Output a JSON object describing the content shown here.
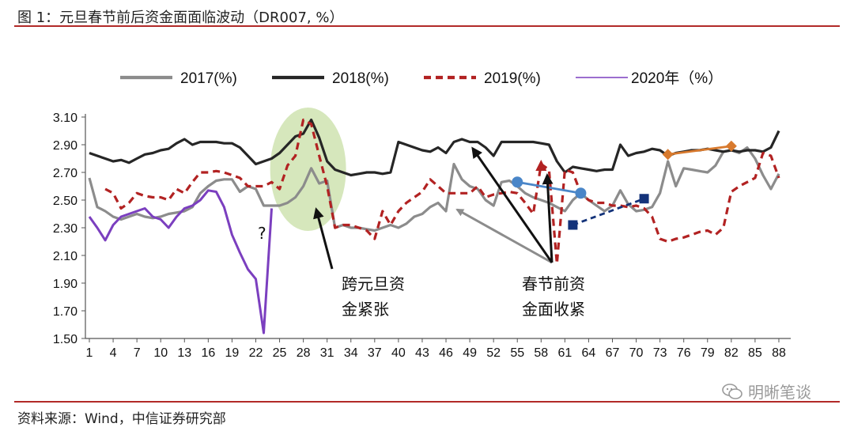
{
  "title": "图 1：元旦春节前后资金面面临波动（DR007, %）",
  "source": "资料来源：Wind，中信证券研究部",
  "watermark": "明晰笔谈",
  "annotations": {
    "cross_new_year_1": "跨元旦资",
    "cross_new_year_2": "金紧张",
    "pre_spring_1": "春节前资",
    "pre_spring_2": "金面收紧",
    "question": "?"
  },
  "colors": {
    "s2017": "#8c8c8c",
    "s2018": "#262626",
    "s2019": "#b22222",
    "s2020": "#7b3fbf",
    "highlight": "#cfe3b0",
    "blue": "#4a86c8",
    "navy": "#14337a",
    "orange": "#d87a2e",
    "rule": "#b22a28"
  },
  "chart_data": {
    "type": "line",
    "title": "元旦春节前后资金面面临波动（DR007, %）",
    "xlabel": "",
    "ylabel": "",
    "ylim": [
      1.5,
      3.1
    ],
    "yticks": [
      "3.10",
      "2.90",
      "2.70",
      "2.50",
      "2.30",
      "2.10",
      "1.90",
      "1.70",
      "1.50"
    ],
    "xticks": [
      "1",
      "4",
      "7",
      "10",
      "13",
      "16",
      "19",
      "22",
      "25",
      "28",
      "31",
      "34",
      "37",
      "40",
      "43",
      "46",
      "49",
      "52",
      "55",
      "58",
      "61",
      "64",
      "67",
      "70",
      "73",
      "76",
      "79",
      "82",
      "85",
      "88"
    ],
    "legend_position": "top",
    "grid": false,
    "series": [
      {
        "name": "2017(%)",
        "style": "solid-thick",
        "points": [
          [
            1,
            2.66
          ],
          [
            2,
            2.45
          ],
          [
            3,
            2.42
          ],
          [
            4,
            2.38
          ],
          [
            5,
            2.36
          ],
          [
            6,
            2.38
          ],
          [
            7,
            2.4
          ],
          [
            8,
            2.38
          ],
          [
            9,
            2.37
          ],
          [
            10,
            2.38
          ],
          [
            11,
            2.4
          ],
          [
            12,
            2.41
          ],
          [
            13,
            2.42
          ],
          [
            14,
            2.45
          ],
          [
            15,
            2.55
          ],
          [
            16,
            2.6
          ],
          [
            17,
            2.64
          ],
          [
            18,
            2.65
          ],
          [
            19,
            2.65
          ],
          [
            20,
            2.56
          ],
          [
            21,
            2.6
          ],
          [
            22,
            2.58
          ],
          [
            23,
            2.46
          ],
          [
            24,
            2.46
          ],
          [
            25,
            2.46
          ],
          [
            26,
            2.48
          ],
          [
            27,
            2.52
          ],
          [
            28,
            2.6
          ],
          [
            29,
            2.73
          ],
          [
            30,
            2.62
          ],
          [
            31,
            2.64
          ],
          [
            32,
            2.3
          ],
          [
            33,
            2.32
          ],
          [
            34,
            2.3
          ],
          [
            35,
            2.3
          ],
          [
            36,
            2.29
          ],
          [
            37,
            2.28
          ],
          [
            38,
            2.3
          ],
          [
            39,
            2.32
          ],
          [
            40,
            2.3
          ],
          [
            41,
            2.33
          ],
          [
            42,
            2.38
          ],
          [
            43,
            2.4
          ],
          [
            44,
            2.45
          ],
          [
            45,
            2.48
          ],
          [
            46,
            2.42
          ],
          [
            47,
            2.76
          ],
          [
            48,
            2.65
          ],
          [
            49,
            2.6
          ],
          [
            50,
            2.58
          ],
          [
            51,
            2.5
          ],
          [
            52,
            2.46
          ],
          [
            53,
            2.63
          ],
          [
            54,
            2.64
          ],
          [
            55,
            2.6
          ],
          [
            56,
            2.55
          ],
          [
            57,
            2.52
          ],
          [
            58,
            2.5
          ],
          [
            59,
            2.48
          ],
          [
            60,
            2.45
          ],
          [
            61,
            2.42
          ],
          [
            62,
            2.5
          ],
          [
            63,
            2.55
          ],
          [
            64,
            2.5
          ],
          [
            65,
            2.46
          ],
          [
            66,
            2.42
          ],
          [
            67,
            2.46
          ],
          [
            68,
            2.57
          ],
          [
            69,
            2.47
          ],
          [
            70,
            2.42
          ],
          [
            71,
            2.43
          ],
          [
            72,
            2.45
          ],
          [
            73,
            2.55
          ],
          [
            74,
            2.78
          ],
          [
            75,
            2.6
          ],
          [
            76,
            2.73
          ],
          [
            77,
            2.72
          ],
          [
            78,
            2.71
          ],
          [
            79,
            2.7
          ],
          [
            80,
            2.75
          ],
          [
            81,
            2.85
          ],
          [
            82,
            2.86
          ],
          [
            83,
            2.84
          ],
          [
            84,
            2.88
          ],
          [
            85,
            2.8
          ],
          [
            86,
            2.68
          ],
          [
            87,
            2.58
          ],
          [
            88,
            2.69
          ]
        ]
      },
      {
        "name": "2018(%)",
        "style": "solid-thick",
        "points": [
          [
            1,
            2.84
          ],
          [
            2,
            2.82
          ],
          [
            3,
            2.8
          ],
          [
            4,
            2.78
          ],
          [
            5,
            2.79
          ],
          [
            6,
            2.77
          ],
          [
            7,
            2.8
          ],
          [
            8,
            2.83
          ],
          [
            9,
            2.84
          ],
          [
            10,
            2.86
          ],
          [
            11,
            2.87
          ],
          [
            12,
            2.91
          ],
          [
            13,
            2.94
          ],
          [
            14,
            2.9
          ],
          [
            15,
            2.92
          ],
          [
            16,
            2.92
          ],
          [
            17,
            2.92
          ],
          [
            18,
            2.91
          ],
          [
            19,
            2.91
          ],
          [
            20,
            2.88
          ],
          [
            21,
            2.82
          ],
          [
            22,
            2.76
          ],
          [
            23,
            2.78
          ],
          [
            24,
            2.8
          ],
          [
            25,
            2.84
          ],
          [
            26,
            2.9
          ],
          [
            27,
            2.96
          ],
          [
            28,
            2.98
          ],
          [
            29,
            3.08
          ],
          [
            30,
            2.95
          ],
          [
            31,
            2.78
          ],
          [
            32,
            2.72
          ],
          [
            33,
            2.7
          ],
          [
            34,
            2.68
          ],
          [
            35,
            2.69
          ],
          [
            36,
            2.7
          ],
          [
            37,
            2.7
          ],
          [
            38,
            2.69
          ],
          [
            39,
            2.7
          ],
          [
            40,
            2.92
          ],
          [
            41,
            2.9
          ],
          [
            42,
            2.88
          ],
          [
            43,
            2.86
          ],
          [
            44,
            2.85
          ],
          [
            45,
            2.88
          ],
          [
            46,
            2.84
          ],
          [
            47,
            2.92
          ],
          [
            48,
            2.94
          ],
          [
            49,
            2.92
          ],
          [
            50,
            2.92
          ],
          [
            51,
            2.88
          ],
          [
            52,
            2.82
          ],
          [
            53,
            2.92
          ],
          [
            54,
            2.92
          ],
          [
            55,
            2.92
          ],
          [
            56,
            2.92
          ],
          [
            57,
            2.92
          ],
          [
            58,
            2.91
          ],
          [
            59,
            2.9
          ],
          [
            60,
            2.78
          ],
          [
            61,
            2.7
          ],
          [
            62,
            2.74
          ],
          [
            63,
            2.73
          ],
          [
            64,
            2.72
          ],
          [
            65,
            2.71
          ],
          [
            66,
            2.72
          ],
          [
            67,
            2.72
          ],
          [
            68,
            2.9
          ],
          [
            69,
            2.82
          ],
          [
            70,
            2.84
          ],
          [
            71,
            2.85
          ],
          [
            72,
            2.87
          ],
          [
            73,
            2.86
          ],
          [
            74,
            2.82
          ],
          [
            75,
            2.84
          ],
          [
            76,
            2.85
          ],
          [
            77,
            2.86
          ],
          [
            78,
            2.86
          ],
          [
            79,
            2.87
          ],
          [
            80,
            2.86
          ],
          [
            81,
            2.85
          ],
          [
            82,
            2.86
          ],
          [
            83,
            2.85
          ],
          [
            84,
            2.86
          ],
          [
            85,
            2.86
          ],
          [
            86,
            2.85
          ],
          [
            87,
            2.88
          ],
          [
            88,
            3.0
          ]
        ]
      },
      {
        "name": "2019(%)",
        "style": "dashed-thick",
        "points": [
          [
            3,
            2.58
          ],
          [
            4,
            2.55
          ],
          [
            5,
            2.44
          ],
          [
            6,
            2.48
          ],
          [
            7,
            2.55
          ],
          [
            8,
            2.53
          ],
          [
            9,
            2.52
          ],
          [
            10,
            2.52
          ],
          [
            11,
            2.5
          ],
          [
            12,
            2.58
          ],
          [
            13,
            2.55
          ],
          [
            14,
            2.63
          ],
          [
            15,
            2.7
          ],
          [
            16,
            2.7
          ],
          [
            17,
            2.71
          ],
          [
            18,
            2.7
          ],
          [
            19,
            2.68
          ],
          [
            20,
            2.66
          ],
          [
            21,
            2.6
          ],
          [
            22,
            2.6
          ],
          [
            23,
            2.6
          ],
          [
            24,
            2.63
          ],
          [
            25,
            2.58
          ],
          [
            26,
            2.75
          ],
          [
            27,
            2.82
          ],
          [
            28,
            3.08
          ],
          [
            29,
            3.05
          ],
          [
            30,
            2.82
          ],
          [
            31,
            2.6
          ],
          [
            32,
            2.3
          ],
          [
            33,
            2.32
          ],
          [
            34,
            2.32
          ],
          [
            35,
            2.3
          ],
          [
            36,
            2.28
          ],
          [
            37,
            2.22
          ],
          [
            38,
            2.42
          ],
          [
            39,
            2.32
          ],
          [
            40,
            2.42
          ],
          [
            41,
            2.48
          ],
          [
            42,
            2.52
          ],
          [
            43,
            2.56
          ],
          [
            44,
            2.65
          ],
          [
            45,
            2.6
          ],
          [
            46,
            2.55
          ],
          [
            47,
            2.55
          ],
          [
            48,
            2.55
          ],
          [
            49,
            2.55
          ],
          [
            50,
            2.6
          ],
          [
            51,
            2.52
          ],
          [
            52,
            2.54
          ],
          [
            53,
            2.55
          ],
          [
            54,
            2.56
          ],
          [
            55,
            2.55
          ],
          [
            56,
            2.48
          ],
          [
            57,
            2.4
          ],
          [
            58,
            2.76
          ],
          [
            59,
            2.72
          ],
          [
            60,
            2.04
          ],
          [
            61,
            2.72
          ],
          [
            62,
            2.7
          ],
          [
            63,
            2.55
          ],
          [
            64,
            2.5
          ],
          [
            65,
            2.48
          ],
          [
            66,
            2.48
          ],
          [
            67,
            2.46
          ],
          [
            68,
            2.46
          ],
          [
            69,
            2.45
          ],
          [
            70,
            2.46
          ],
          [
            71,
            2.44
          ],
          [
            72,
            2.38
          ],
          [
            73,
            2.22
          ],
          [
            74,
            2.2
          ],
          [
            75,
            2.22
          ],
          [
            76,
            2.23
          ],
          [
            77,
            2.25
          ],
          [
            78,
            2.27
          ],
          [
            79,
            2.28
          ],
          [
            80,
            2.25
          ],
          [
            81,
            2.3
          ],
          [
            82,
            2.56
          ],
          [
            83,
            2.6
          ],
          [
            84,
            2.63
          ],
          [
            85,
            2.66
          ],
          [
            86,
            2.84
          ],
          [
            87,
            2.82
          ],
          [
            88,
            2.66
          ]
        ]
      },
      {
        "name": "2020年（%）",
        "style": "solid-thin",
        "points": [
          [
            1,
            2.38
          ],
          [
            2,
            2.3
          ],
          [
            3,
            2.21
          ],
          [
            4,
            2.32
          ],
          [
            5,
            2.38
          ],
          [
            6,
            2.4
          ],
          [
            7,
            2.42
          ],
          [
            8,
            2.44
          ],
          [
            9,
            2.38
          ],
          [
            10,
            2.36
          ],
          [
            11,
            2.3
          ],
          [
            12,
            2.38
          ],
          [
            13,
            2.44
          ],
          [
            14,
            2.46
          ],
          [
            15,
            2.5
          ],
          [
            16,
            2.57
          ],
          [
            17,
            2.56
          ],
          [
            18,
            2.45
          ],
          [
            19,
            2.25
          ],
          [
            20,
            2.12
          ],
          [
            21,
            2.0
          ],
          [
            22,
            1.93
          ],
          [
            23,
            1.54
          ],
          [
            24,
            2.44
          ]
        ]
      }
    ],
    "markers": [
      {
        "name": "blue",
        "x": [
          55,
          63
        ],
        "y": [
          2.63,
          2.55
        ],
        "shape": "circle",
        "style": "solid"
      },
      {
        "name": "navy",
        "x": [
          62,
          71
        ],
        "y": [
          2.32,
          2.51
        ],
        "shape": "square",
        "style": "dashed"
      },
      {
        "name": "orange",
        "x": [
          74,
          82
        ],
        "y": [
          2.83,
          2.89
        ],
        "shape": "diamond",
        "style": "solid"
      },
      {
        "name": "red-triangle",
        "x": [
          58
        ],
        "y": [
          2.74
        ],
        "shape": "triangle",
        "style": "none"
      }
    ]
  }
}
